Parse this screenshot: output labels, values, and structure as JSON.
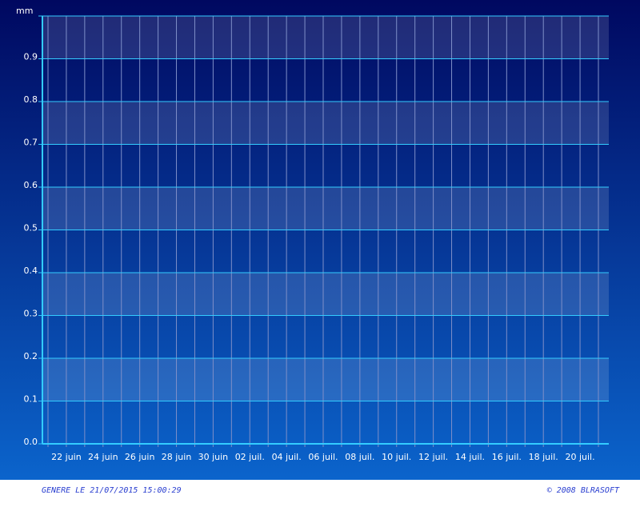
{
  "chart_data": {
    "type": "bar",
    "y_label": "mm",
    "categories": [
      null,
      "22 juin",
      null,
      "24 juin",
      null,
      "26 juin",
      null,
      "28 juin",
      null,
      "30 juin",
      null,
      "02 juil.",
      null,
      "04 juil.",
      null,
      "06 juil.",
      null,
      "08 juil.",
      null,
      "10 juil.",
      null,
      "12 juil.",
      null,
      "14 juil.",
      null,
      "16 juil.",
      null,
      "18 juil.",
      null,
      "20 juil.",
      null
    ],
    "ylim": [
      0,
      1
    ],
    "yticks": [
      {
        "value": 0,
        "label": "0.0"
      },
      0.1,
      0.2,
      0.3,
      0.4,
      0.5,
      0.6,
      0.7,
      0.8,
      0.9
    ],
    "grid": true
  },
  "footer": {
    "generated": "GENERE LE 21/07/2015 15:00:29",
    "copyright": "© 2008 BLRASOFT"
  }
}
